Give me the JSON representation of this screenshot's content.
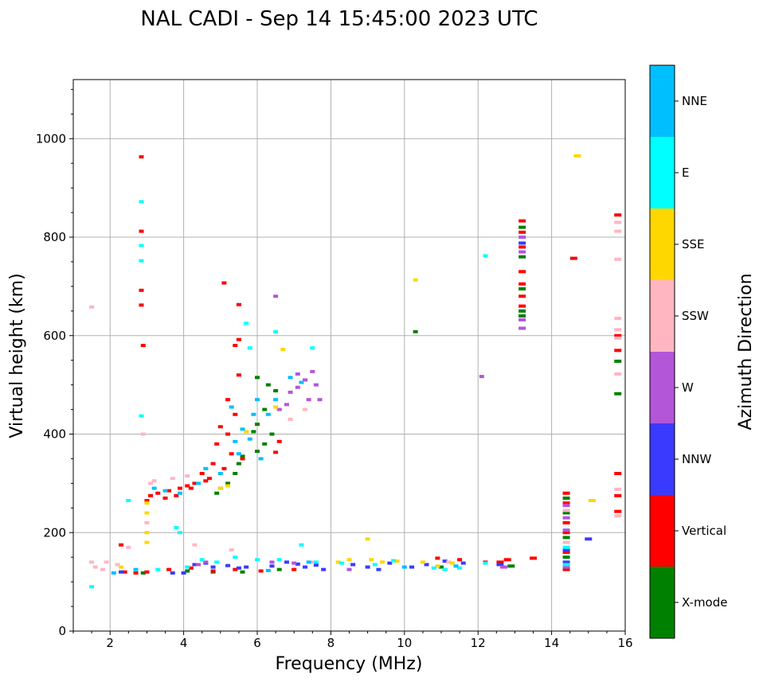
{
  "chart_data": {
    "type": "scatter",
    "title": "NAL CADI - Sep 14 15:45:00 2023 UTC",
    "xlabel": "Frequency (MHz)",
    "ylabel": "Virtual height (km)",
    "xlim": [
      1,
      16
    ],
    "ylim": [
      0,
      1120
    ],
    "x_ticks": [
      "2",
      "4",
      "6",
      "8",
      "10",
      "12",
      "14",
      "16"
    ],
    "y_ticks": [
      "0",
      "200",
      "400",
      "600",
      "800",
      "1000"
    ],
    "grid": true,
    "colorbar": {
      "label": "Azimuth Direction",
      "categories": [
        {
          "name": "X-mode",
          "color": "#008000"
        },
        {
          "name": "Vertical",
          "color": "#ff0000"
        },
        {
          "name": "NNW",
          "color": "#3a3aff"
        },
        {
          "name": "W",
          "color": "#b456d8"
        },
        {
          "name": "SSW",
          "color": "#ffb6c1"
        },
        {
          "name": "SSE",
          "color": "#ffd700"
        },
        {
          "name": "E",
          "color": "#00ffff"
        },
        {
          "name": "NNE",
          "color": "#00bfff"
        }
      ]
    },
    "series": [
      {
        "name": "X-mode",
        "points": [
          [
            6.0,
            515
          ],
          [
            6.3,
            500
          ],
          [
            6.5,
            488
          ],
          [
            6.2,
            450
          ],
          [
            6.0,
            420
          ],
          [
            5.9,
            405
          ],
          [
            6.4,
            400
          ],
          [
            6.2,
            380
          ],
          [
            6.0,
            365
          ],
          [
            5.6,
            355
          ],
          [
            5.5,
            340
          ],
          [
            5.4,
            320
          ],
          [
            5.2,
            300
          ],
          [
            5.0,
            290
          ],
          [
            4.9,
            280
          ],
          [
            13.2,
            820
          ],
          [
            13.2,
            760
          ],
          [
            13.2,
            695
          ],
          [
            13.2,
            650
          ],
          [
            13.2,
            640
          ],
          [
            14.4,
            270
          ],
          [
            14.4,
            240
          ],
          [
            14.4,
            190
          ],
          [
            14.4,
            150
          ],
          [
            15.8,
            548
          ],
          [
            15.8,
            482
          ],
          [
            10.3,
            608
          ],
          [
            4.1,
            122
          ],
          [
            4.8,
            120
          ],
          [
            5.6,
            120
          ],
          [
            6.6,
            125
          ],
          [
            11.0,
            130
          ],
          [
            12.9,
            132
          ],
          [
            2.9,
            118
          ]
        ]
      },
      {
        "name": "Vertical",
        "points": [
          [
            15.8,
            845
          ],
          [
            15.8,
            600
          ],
          [
            15.8,
            570
          ],
          [
            15.8,
            320
          ],
          [
            15.8,
            275
          ],
          [
            15.8,
            243
          ],
          [
            14.6,
            757
          ],
          [
            13.2,
            833
          ],
          [
            13.2,
            810
          ],
          [
            13.2,
            780
          ],
          [
            13.2,
            730
          ],
          [
            13.2,
            705
          ],
          [
            13.2,
            680
          ],
          [
            13.2,
            660
          ],
          [
            12.8,
            145
          ],
          [
            12.6,
            140
          ],
          [
            13.5,
            148
          ],
          [
            14.4,
            280
          ],
          [
            14.4,
            260
          ],
          [
            14.4,
            220
          ],
          [
            14.4,
            200
          ],
          [
            14.4,
            160
          ],
          [
            14.4,
            125
          ],
          [
            2.85,
            963
          ],
          [
            2.85,
            812
          ],
          [
            2.85,
            692
          ],
          [
            2.85,
            662
          ],
          [
            5.5,
            592
          ],
          [
            5.4,
            580
          ],
          [
            5.5,
            520
          ],
          [
            5.2,
            470
          ],
          [
            5.4,
            440
          ],
          [
            5.0,
            415
          ],
          [
            5.2,
            400
          ],
          [
            4.9,
            380
          ],
          [
            5.3,
            360
          ],
          [
            4.8,
            340
          ],
          [
            5.1,
            330
          ],
          [
            4.5,
            320
          ],
          [
            4.7,
            310
          ],
          [
            4.3,
            300
          ],
          [
            4.1,
            295
          ],
          [
            3.9,
            290
          ],
          [
            3.6,
            285
          ],
          [
            3.3,
            280
          ],
          [
            3.1,
            275
          ],
          [
            3.0,
            265
          ],
          [
            3.5,
            270
          ],
          [
            3.8,
            275
          ],
          [
            4.2,
            290
          ],
          [
            4.6,
            305
          ],
          [
            5.6,
            350
          ],
          [
            6.5,
            363
          ],
          [
            6.6,
            385
          ],
          [
            5.1,
            707
          ],
          [
            5.5,
            663
          ],
          [
            2.3,
            175
          ],
          [
            2.4,
            120
          ],
          [
            2.7,
            118
          ],
          [
            3.0,
            120
          ],
          [
            3.6,
            125
          ],
          [
            4.2,
            128
          ],
          [
            4.8,
            122
          ],
          [
            5.4,
            125
          ],
          [
            6.1,
            122
          ],
          [
            7.0,
            125
          ],
          [
            10.9,
            148
          ],
          [
            11.5,
            145
          ],
          [
            12.2,
            140
          ],
          [
            2.9,
            580
          ]
        ]
      },
      {
        "name": "NNW",
        "points": [
          [
            4.3,
            135
          ],
          [
            4.6,
            138
          ],
          [
            4.8,
            130
          ],
          [
            5.2,
            133
          ],
          [
            5.5,
            128
          ],
          [
            5.7,
            130
          ],
          [
            6.4,
            132
          ],
          [
            6.8,
            140
          ],
          [
            7.1,
            136
          ],
          [
            7.3,
            130
          ],
          [
            7.6,
            134
          ],
          [
            8.6,
            135
          ],
          [
            9.0,
            130
          ],
          [
            9.3,
            125
          ],
          [
            9.6,
            138
          ],
          [
            10.2,
            130
          ],
          [
            10.6,
            135
          ],
          [
            11.1,
            142
          ],
          [
            11.6,
            138
          ],
          [
            12.6,
            135
          ],
          [
            14.4,
            165
          ],
          [
            14.4,
            140
          ],
          [
            15.0,
            187
          ],
          [
            13.2,
            788
          ],
          [
            2.3,
            120
          ],
          [
            3.7,
            118
          ],
          [
            4.0,
            118
          ],
          [
            7.8,
            125
          ]
        ]
      },
      {
        "name": "W",
        "points": [
          [
            7.1,
            522
          ],
          [
            7.3,
            510
          ],
          [
            7.5,
            527
          ],
          [
            7.6,
            500
          ],
          [
            7.1,
            495
          ],
          [
            6.9,
            485
          ],
          [
            7.4,
            470
          ],
          [
            7.7,
            470
          ],
          [
            6.8,
            460
          ],
          [
            6.6,
            450
          ],
          [
            6.5,
            680
          ],
          [
            13.2,
            800
          ],
          [
            13.2,
            770
          ],
          [
            13.2,
            632
          ],
          [
            13.2,
            615
          ],
          [
            14.4,
            255
          ],
          [
            14.4,
            230
          ],
          [
            14.4,
            205
          ],
          [
            14.4,
            130
          ],
          [
            12.1,
            517
          ],
          [
            4.4,
            135
          ],
          [
            4.6,
            140
          ],
          [
            6.4,
            140
          ],
          [
            7.0,
            138
          ],
          [
            12.7,
            130
          ],
          [
            8.5,
            125
          ]
        ]
      },
      {
        "name": "SSW",
        "points": [
          [
            1.5,
            658
          ],
          [
            1.5,
            140
          ],
          [
            1.6,
            130
          ],
          [
            1.8,
            125
          ],
          [
            1.9,
            140
          ],
          [
            2.2,
            135
          ],
          [
            2.5,
            170
          ],
          [
            2.9,
            400
          ],
          [
            3.0,
            220
          ],
          [
            3.1,
            300
          ],
          [
            3.2,
            305
          ],
          [
            3.7,
            310
          ],
          [
            4.1,
            315
          ],
          [
            6.9,
            430
          ],
          [
            7.3,
            450
          ],
          [
            15.8,
            830
          ],
          [
            15.8,
            812
          ],
          [
            15.8,
            755
          ],
          [
            15.8,
            635
          ],
          [
            15.8,
            612
          ],
          [
            15.8,
            595
          ],
          [
            15.8,
            522
          ],
          [
            15.8,
            288
          ],
          [
            15.8,
            234
          ],
          [
            14.4,
            245
          ],
          [
            14.4,
            180
          ],
          [
            4.3,
            175
          ],
          [
            5.3,
            165
          ],
          [
            7.5,
            140
          ],
          [
            11.2,
            140
          ]
        ]
      },
      {
        "name": "SSE",
        "points": [
          [
            14.7,
            965
          ],
          [
            15.1,
            265
          ],
          [
            10.3,
            713
          ],
          [
            6.7,
            572
          ],
          [
            8.2,
            140
          ],
          [
            8.5,
            145
          ],
          [
            9.0,
            187
          ],
          [
            9.1,
            145
          ],
          [
            9.4,
            140
          ],
          [
            9.8,
            142
          ],
          [
            10.5,
            140
          ],
          [
            10.9,
            132
          ],
          [
            11.3,
            138
          ],
          [
            2.3,
            130
          ],
          [
            3.0,
            180
          ],
          [
            3.0,
            200
          ],
          [
            3.0,
            240
          ],
          [
            3.0,
            260
          ],
          [
            5.0,
            290
          ],
          [
            5.2,
            295
          ],
          [
            5.7,
            405
          ],
          [
            6.5,
            455
          ]
        ]
      },
      {
        "name": "E",
        "points": [
          [
            2.85,
            872
          ],
          [
            2.85,
            783
          ],
          [
            2.85,
            752
          ],
          [
            2.85,
            437
          ],
          [
            5.7,
            625
          ],
          [
            5.8,
            575
          ],
          [
            6.5,
            608
          ],
          [
            7.5,
            575
          ],
          [
            12.2,
            762
          ],
          [
            2.5,
            265
          ],
          [
            3.8,
            210
          ],
          [
            3.9,
            200
          ],
          [
            4.5,
            145
          ],
          [
            4.9,
            140
          ],
          [
            5.4,
            150
          ],
          [
            6.0,
            145
          ],
          [
            6.6,
            145
          ],
          [
            7.2,
            175
          ],
          [
            7.6,
            140
          ],
          [
            8.3,
            138
          ],
          [
            9.2,
            135
          ],
          [
            9.7,
            143
          ],
          [
            10.8,
            128
          ],
          [
            11.1,
            125
          ],
          [
            11.5,
            128
          ],
          [
            12.2,
            138
          ],
          [
            14.4,
            135
          ],
          [
            14.4,
            170
          ],
          [
            1.5,
            90
          ],
          [
            3.3,
            125
          ],
          [
            4.1,
            130
          ]
        ]
      },
      {
        "name": "NNE",
        "points": [
          [
            6.9,
            515
          ],
          [
            7.2,
            505
          ],
          [
            6.5,
            470
          ],
          [
            6.3,
            440
          ],
          [
            6.0,
            470
          ],
          [
            5.9,
            440
          ],
          [
            5.6,
            410
          ],
          [
            5.4,
            385
          ],
          [
            5.3,
            455
          ],
          [
            5.8,
            390
          ],
          [
            6.1,
            350
          ],
          [
            5.5,
            360
          ],
          [
            5.0,
            320
          ],
          [
            4.6,
            330
          ],
          [
            4.4,
            300
          ],
          [
            3.9,
            280
          ],
          [
            3.5,
            285
          ],
          [
            3.2,
            290
          ],
          [
            6.3,
            123
          ],
          [
            7.4,
            140
          ],
          [
            10.0,
            130
          ],
          [
            11.4,
            132
          ],
          [
            2.1,
            118
          ],
          [
            2.7,
            125
          ]
        ]
      }
    ]
  }
}
